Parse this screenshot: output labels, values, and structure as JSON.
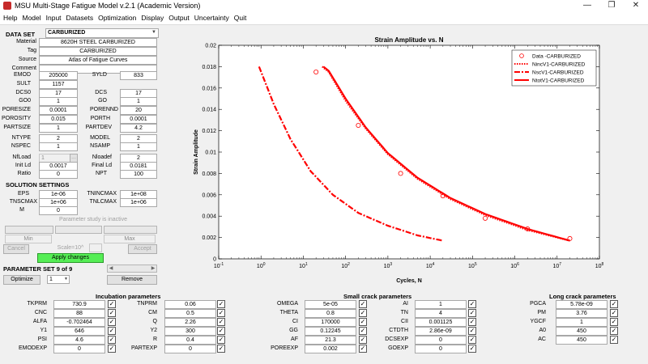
{
  "window": {
    "title": "MSU Multi-Stage Fatigue Model v.2.1 (Academic Version)"
  },
  "menu": [
    "Help",
    "Model",
    "Input",
    "Datasets",
    "Optimization",
    "Display",
    "Output",
    "Uncertainty",
    "Quit"
  ],
  "dataset": {
    "label": "DATA SET",
    "selected": "CARBURIZED",
    "material_label": "Material",
    "material": "8620H STEEL CARBURIZED",
    "tag_label": "Tag",
    "tag": "CARBURIZED",
    "source_label": "Source",
    "source": "Atlas of Fatigue Curves",
    "comment_label": "Comment",
    "comment": ""
  },
  "params": {
    "EMOD": "205000",
    "SYLD": "833",
    "SULT": "1157",
    "DCS0": "17",
    "DCS": "17",
    "GO0": "1",
    "GO": "1",
    "PORESIZE": "0.0001",
    "PORENND": "20",
    "POROSITY": "0.015",
    "PORTH": "0.0001",
    "PARTSIZE": "1",
    "PARTDEV": "4.2",
    "NTYPE": "2",
    "MODEL": "2",
    "NSPEC": "1",
    "NSAMP": "1",
    "NfLoad": "1",
    "Nloadef": "2",
    "InitLd": "0.0017",
    "FinalLd": "0.0181",
    "Ratio": "0",
    "NPT": "100"
  },
  "labels": {
    "EMOD": "EMOD",
    "SYLD": "SYLD",
    "SULT": "SULT",
    "DCS0": "DCS0",
    "DCS": "DCS",
    "GO0": "GO0",
    "GO": "GO",
    "PORESIZE": "PORESIZE",
    "PORENND": "PORENND",
    "POROSITY": "POROSITY",
    "PORTH": "PORTH",
    "PARTSIZE": "PARTSIZE",
    "PARTDEV": "PARTDEV",
    "NTYPE": "NTYPE",
    "MODEL": "MODEL",
    "NSPEC": "NSPEC",
    "NSAMP": "NSAMP",
    "NfLoad": "NfLoad",
    "Nloadef": "Nloadef",
    "InitLd": "Init Ld",
    "FinalLd": "Final Ld",
    "Ratio": "Ratio",
    "NPT": "NPT"
  },
  "solution": {
    "header": "SOLUTION SETTINGS",
    "EPS_label": "EPS",
    "EPS": "1e-06",
    "TNINCMAX_label": "TNINCMAX",
    "TNINCMAX": "1e+08",
    "TNSCMAX_label": "TNSCMAX",
    "TNSCMAX": "1e+06",
    "TNLCMAX_label": "TNLCMAX",
    "TNLCMAX": "1e+06",
    "M_label": "M",
    "M": "0"
  },
  "param_study": {
    "status": "Parameter study is inactive",
    "min_label": "Min",
    "max_label": "Max",
    "scale_label": "Scale=10^",
    "cancel": "Cancel",
    "accept": "Accept",
    "apply": "Apply changes"
  },
  "param_set": {
    "label": "PARAMETER SET 9 of 9",
    "optimize": "Optimize",
    "selected": "1",
    "remove": "Remove"
  },
  "incubation": {
    "title": "Incubation parameters",
    "rows": [
      {
        "l1": "TKPRM",
        "v1": "730.9",
        "l2": "TNPRM",
        "v2": "0.06"
      },
      {
        "l1": "CNC",
        "v1": "88",
        "l2": "CM",
        "v2": "0.5"
      },
      {
        "l1": "ALFA",
        "v1": "-0.702464",
        "l2": "Q",
        "v2": "2.26"
      },
      {
        "l1": "Y1",
        "v1": "646",
        "l2": "Y2",
        "v2": "300"
      },
      {
        "l1": "PSI",
        "v1": "4.6",
        "l2": "R",
        "v2": "0.4"
      },
      {
        "l1": "EMODEXP",
        "v1": "0",
        "l2": "PARTEXP",
        "v2": "0"
      }
    ]
  },
  "small_crack": {
    "title": "Small crack parameters",
    "rows": [
      {
        "l1": "OMEGA",
        "v1": "5e-05",
        "l2": "AI",
        "v2": "1"
      },
      {
        "l1": "THETA",
        "v1": "0.8",
        "l2": "TN",
        "v2": "4"
      },
      {
        "l1": "CI",
        "v1": "170000",
        "l2": "CII",
        "v2": "0.001125"
      },
      {
        "l1": "GG",
        "v1": "0.12245",
        "l2": "CTDTH",
        "v2": "2.86e-09"
      },
      {
        "l1": "AF",
        "v1": "21.3",
        "l2": "DCSEXP",
        "v2": "0"
      },
      {
        "l1": "POREEXP",
        "v1": "0.002",
        "l2": "GOEXP",
        "v2": "0"
      }
    ]
  },
  "long_crack": {
    "title": "Long crack parameters",
    "rows": [
      {
        "l": "PGCA",
        "v": "5.78e-09"
      },
      {
        "l": "PM",
        "v": "3.76"
      },
      {
        "l": "YGCF",
        "v": "1"
      },
      {
        "l": "A0",
        "v": "450"
      },
      {
        "l": "AC",
        "v": "450"
      }
    ]
  },
  "chart_data": {
    "type": "scatter",
    "title": "Strain Amplitude vs. N",
    "xlabel": "Cycles, N",
    "ylabel": "Strain Amplitude",
    "xscale": "log",
    "xlim": [
      0.1,
      100000000
    ],
    "ylim": [
      0,
      0.02
    ],
    "xticks": [
      "10^-1",
      "10^0",
      "10^1",
      "10^2",
      "10^3",
      "10^4",
      "10^5",
      "10^6",
      "10^7",
      "10^8"
    ],
    "yticks": [
      "0",
      "0.002",
      "0.004",
      "0.006",
      "0.008",
      "0.01",
      "0.012",
      "0.014",
      "0.016",
      "0.018",
      "0.02"
    ],
    "legend_position": "top-right",
    "series": [
      {
        "name": "Data -CARBURIZED",
        "style": "markers",
        "color": "#ff0000",
        "x": [
          20,
          200,
          2000,
          20000,
          200000,
          2000000,
          20000000
        ],
        "y": [
          0.0175,
          0.0125,
          0.008,
          0.0059,
          0.0038,
          0.0028,
          0.0019
        ]
      },
      {
        "name": "NincV1-CARBURIZED",
        "style": "dotted",
        "color": "#ff0000",
        "x": [
          28,
          40,
          100,
          300,
          1000,
          5000,
          30000,
          200000,
          2000000,
          20000000
        ],
        "y": [
          0.018,
          0.0175,
          0.0148,
          0.0122,
          0.0098,
          0.0075,
          0.0056,
          0.0041,
          0.0027,
          0.0017
        ]
      },
      {
        "name": "NscV1-CARBURIZED",
        "style": "dashdot",
        "color": "#ff0000",
        "x": [
          0.9,
          2,
          5,
          15,
          50,
          200,
          1000,
          5000,
          20000
        ],
        "y": [
          0.018,
          0.0145,
          0.0112,
          0.0082,
          0.006,
          0.0043,
          0.0031,
          0.0022,
          0.0017
        ]
      },
      {
        "name": "NtotV1-CARBURIZED",
        "style": "solid",
        "color": "#ff0000",
        "x": [
          30,
          40,
          100,
          300,
          1000,
          5000,
          30000,
          200000,
          2000000,
          20000000
        ],
        "y": [
          0.018,
          0.0176,
          0.015,
          0.0123,
          0.0099,
          0.0076,
          0.0057,
          0.0042,
          0.0028,
          0.0017
        ]
      }
    ]
  }
}
